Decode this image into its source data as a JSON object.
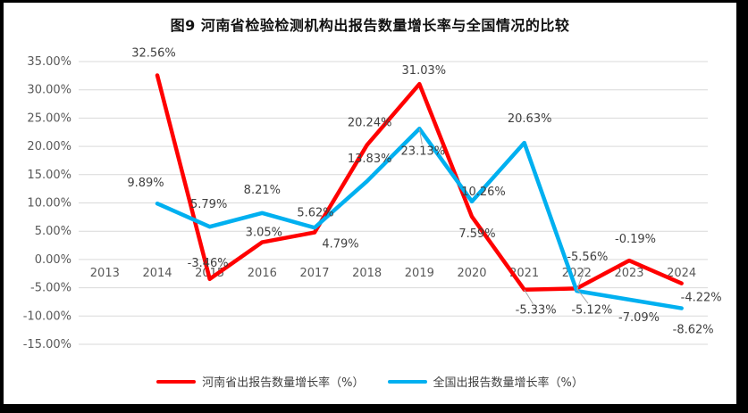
{
  "chart_data": {
    "type": "line",
    "title": "图9  河南省检验检测机构出报告数量增长率与全国情况的比较",
    "categories": [
      "2013",
      "2014",
      "2015",
      "2016",
      "2017",
      "2018",
      "2019",
      "2020",
      "2021",
      "2022",
      "2023",
      "2024"
    ],
    "ylim": [
      -15,
      35
    ],
    "ytick_step": 5,
    "ytick_labels": [
      "35.00%",
      "30.00%",
      "25.00%",
      "20.00%",
      "15.00%",
      "10.00%",
      "5.00%",
      "0.00%",
      "-5.00%",
      "-10.00%",
      "-15.00%"
    ],
    "grid": true,
    "legend_position": "bottom",
    "colors": {
      "gridline": "#d9d9d9",
      "leader_line": "#a6a6a6",
      "tick_text": "#595959",
      "label_text": "#404040"
    },
    "series": [
      {
        "name": "河南省出报告数量增长率（%）",
        "color": "#ff0000",
        "values": [
          null,
          32.56,
          -3.46,
          3.05,
          4.79,
          20.24,
          31.03,
          7.59,
          -5.33,
          -5.12,
          -0.19,
          -4.22
        ],
        "labels": [
          null,
          "32.56%",
          "-3.46%",
          "3.05%",
          "4.79%",
          "20.24%",
          "31.03%",
          "7.59%",
          "-5.33%",
          "-5.12%",
          "-0.19%",
          "-4.22%"
        ],
        "label_offsets": [
          null,
          [
            -4,
            -25
          ],
          [
            -2,
            -18
          ],
          [
            2,
            -11
          ],
          [
            29,
            13
          ],
          [
            3,
            -25
          ],
          [
            5,
            -15
          ],
          [
            6,
            19
          ],
          [
            13,
            23
          ],
          [
            17,
            24
          ],
          [
            7,
            -24
          ],
          [
            22,
            16
          ]
        ],
        "label_leaders": [
          false,
          false,
          false,
          false,
          false,
          false,
          false,
          false,
          true,
          true,
          false,
          false
        ]
      },
      {
        "name": "全国出报告数量增长率（%）",
        "color": "#00b0f0",
        "values": [
          null,
          9.89,
          5.79,
          8.21,
          5.62,
          13.83,
          23.13,
          10.26,
          20.63,
          -5.56,
          -7.09,
          -8.62
        ],
        "labels": [
          null,
          "9.89%",
          "5.79%",
          "8.21%",
          "5.62%",
          "13.83%",
          "23.13%",
          "10.26%",
          "20.63%",
          "-5.56%",
          "-7.09%",
          "-8.62%"
        ],
        "label_offsets": [
          null,
          [
            -13,
            -23
          ],
          [
            -1,
            -25
          ],
          [
            0,
            -26
          ],
          [
            1,
            -17
          ],
          [
            3,
            -25
          ],
          [
            4,
            25
          ],
          [
            13,
            -11
          ],
          [
            6,
            -27
          ],
          [
            12,
            -38
          ],
          [
            11,
            20
          ],
          [
            13,
            24
          ]
        ],
        "label_leaders": [
          false,
          false,
          false,
          false,
          false,
          false,
          true,
          false,
          false,
          true,
          false,
          false
        ]
      }
    ]
  }
}
